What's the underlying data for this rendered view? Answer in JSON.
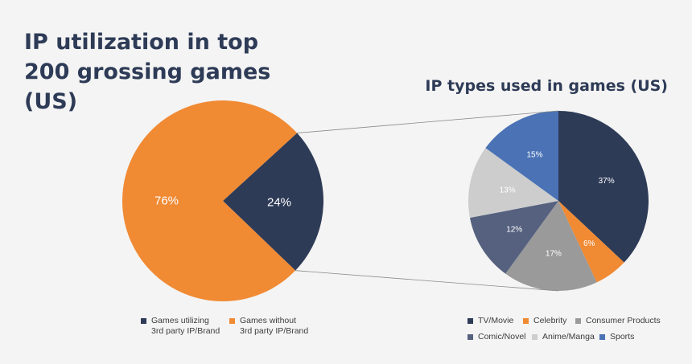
{
  "colors": {
    "navy": "#2e3b57",
    "orange": "#f08a33",
    "gray": "#9a9a9a",
    "slate": "#55617f",
    "light_gray": "#cdcdcd",
    "blue": "#4a72b5",
    "connector": "#8a8a8a"
  },
  "chart_data": [
    {
      "type": "pie",
      "title": "IP utilization in top 200 grossing games (US)",
      "slices": [
        {
          "label": "Games utilizing 3rd party IP/Brand",
          "value": 24,
          "text": "24%",
          "color": "#2e3b57"
        },
        {
          "label": "Games without 3rd party IP/Brand",
          "value": 76,
          "text": "76%",
          "color": "#f08a33"
        }
      ],
      "legend": [
        {
          "line1": "Games utilizing",
          "line2": "3rd party IP/Brand",
          "color": "#2e3b57"
        },
        {
          "line1": "Games without",
          "line2": "3rd party IP/Brand",
          "color": "#f08a33"
        }
      ],
      "legend_position": "bottom"
    },
    {
      "type": "pie",
      "title": "IP types used in games (US)",
      "slices": [
        {
          "label": "TV/Movie",
          "value": 37,
          "text": "37%",
          "color": "#2e3b57"
        },
        {
          "label": "Celebrity",
          "value": 6,
          "text": "6%",
          "color": "#f08a33"
        },
        {
          "label": "Consumer Products",
          "value": 17,
          "text": "17%",
          "color": "#9a9a9a"
        },
        {
          "label": "Comic/Novel",
          "value": 12,
          "text": "12%",
          "color": "#55617f"
        },
        {
          "label": "Anime/Manga",
          "value": 13,
          "text": "13%",
          "color": "#cdcdcd"
        },
        {
          "label": "Sports",
          "value": 15,
          "text": "15%",
          "color": "#4a72b5"
        }
      ],
      "legend_rows": [
        [
          "TV/Movie",
          "Celebrity",
          "Consumer Products"
        ],
        [
          "Comic/Novel",
          "Anime/Manga",
          "Sports"
        ]
      ],
      "legend_position": "bottom"
    }
  ]
}
